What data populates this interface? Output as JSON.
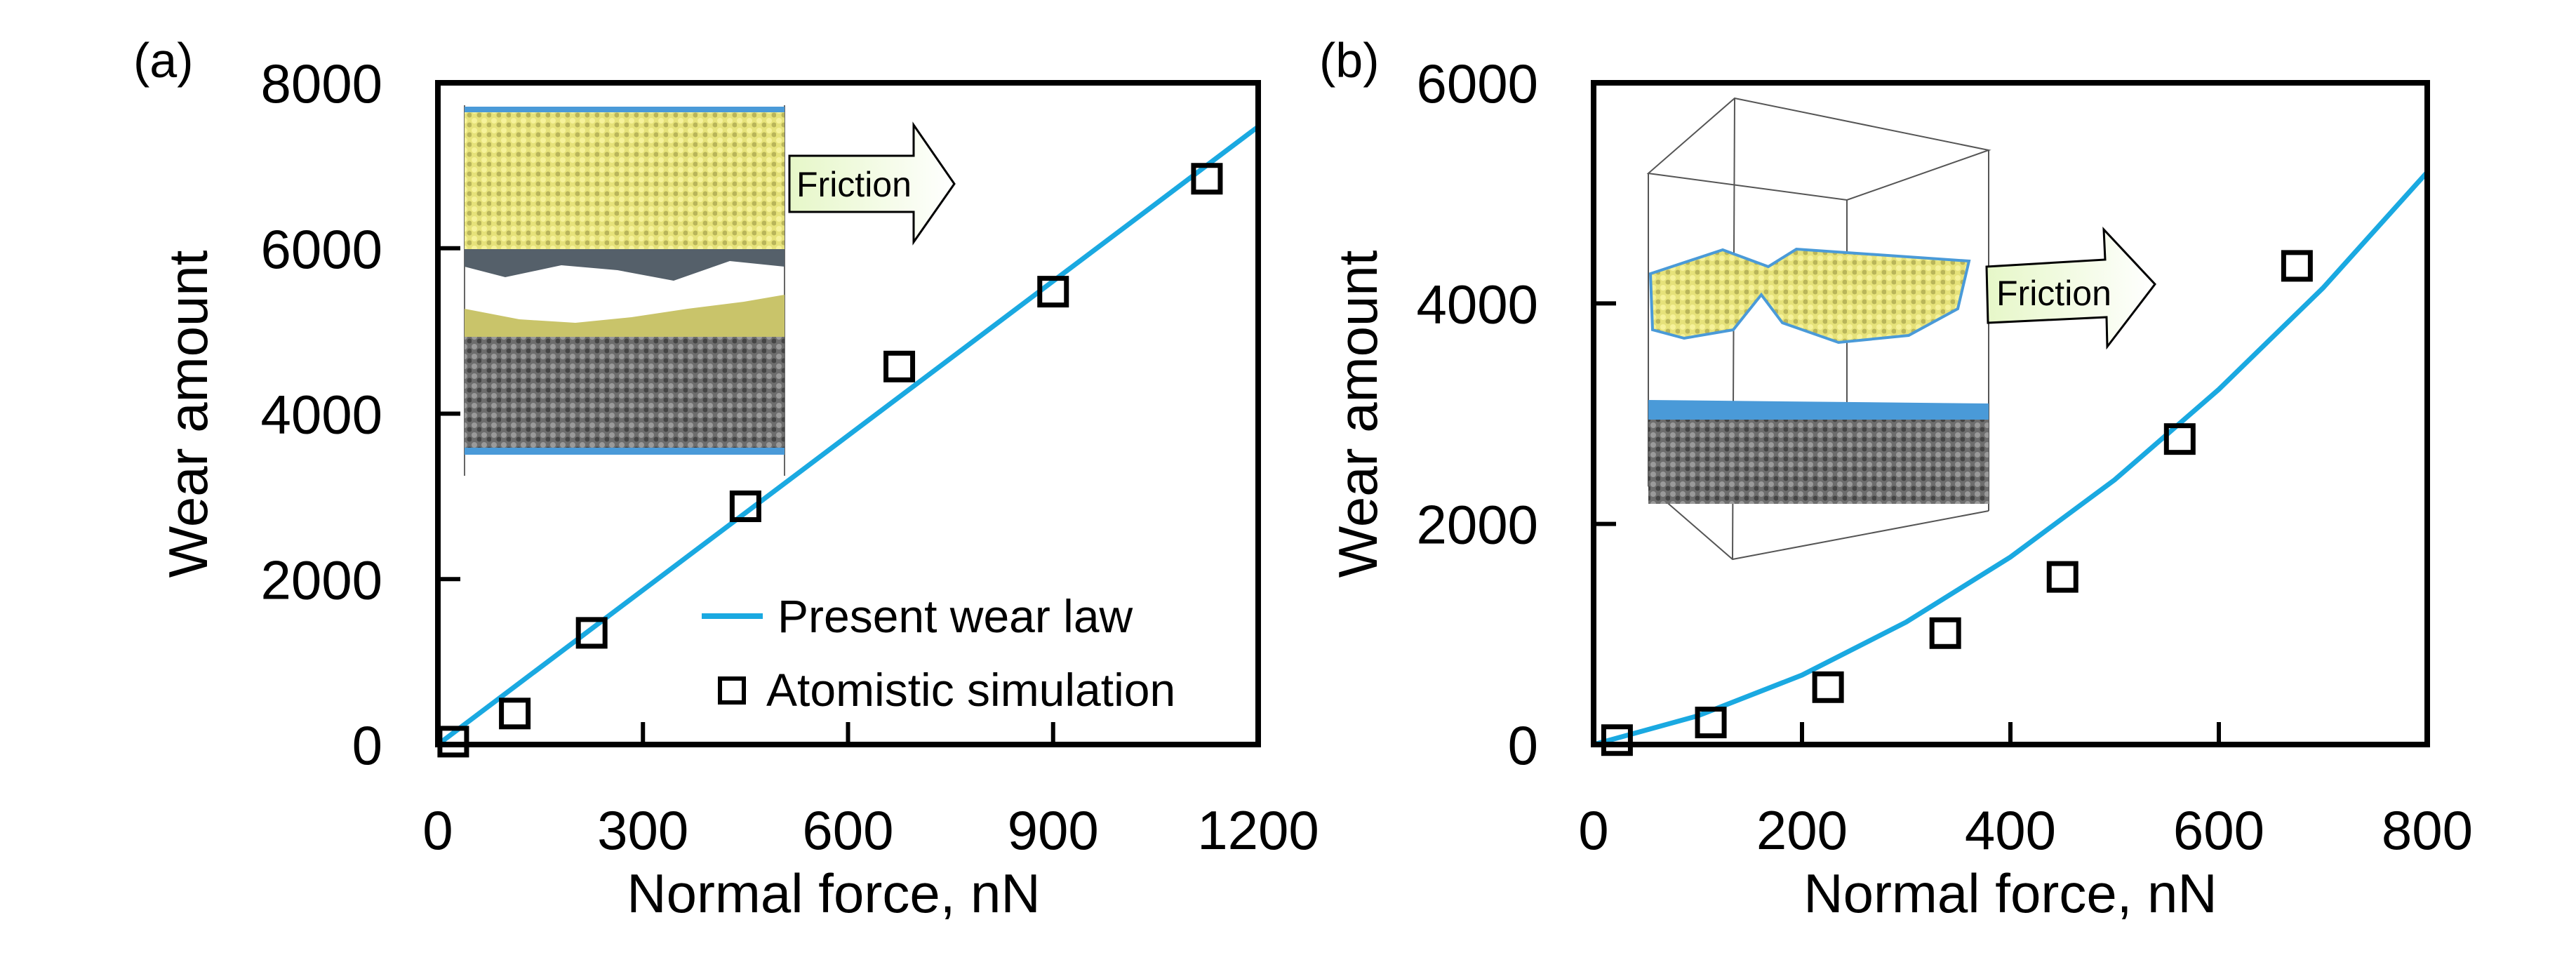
{
  "chart_data": [
    {
      "type": "scatter",
      "panel_label": "(a)",
      "xlabel": "Normal force, nN",
      "ylabel": "Wear amount",
      "xlim": [
        0,
        1200
      ],
      "ylim": [
        0,
        8000
      ],
      "xticks": [
        0,
        300,
        600,
        900,
        1200
      ],
      "yticks": [
        0,
        2000,
        4000,
        6000,
        8000
      ],
      "grid": false,
      "legend_position": "bottom-right",
      "inset_annotation": "Friction",
      "series": [
        {
          "name": "Present wear law",
          "kind": "line",
          "color": "#1aa9e1",
          "x": [
            0,
            1200
          ],
          "y": [
            0,
            7470
          ]
        },
        {
          "name": "Atomistic simulation",
          "kind": "marker",
          "marker": "open-square",
          "color": "#000000",
          "x": [
            22.5,
            112.5,
            225,
            450,
            675,
            900,
            1125
          ],
          "y": [
            35,
            375,
            1350,
            2880,
            4570,
            5475,
            6840
          ]
        }
      ]
    },
    {
      "type": "scatter",
      "panel_label": "(b)",
      "xlabel": "Normal force, nN",
      "ylabel": "Wear amount",
      "xlim": [
        0,
        800
      ],
      "ylim": [
        0,
        6000
      ],
      "xticks": [
        0,
        200,
        400,
        600,
        800
      ],
      "yticks": [
        0,
        2000,
        4000,
        6000
      ],
      "grid": false,
      "inset_annotation": "Friction",
      "series": [
        {
          "name": "Present wear law",
          "kind": "line",
          "color": "#1aa9e1",
          "x": [
            0,
            100,
            200,
            300,
            400,
            500,
            600,
            700,
            800
          ],
          "y": [
            0,
            260,
            630,
            1110,
            1700,
            2400,
            3220,
            4140,
            5190
          ]
        },
        {
          "name": "Atomistic simulation",
          "kind": "marker",
          "marker": "open-square",
          "color": "#000000",
          "x": [
            22.5,
            112.5,
            225,
            337.5,
            450,
            562.5,
            675
          ],
          "y": [
            40,
            200,
            520,
            1010,
            1520,
            2770,
            4340
          ]
        }
      ]
    }
  ]
}
